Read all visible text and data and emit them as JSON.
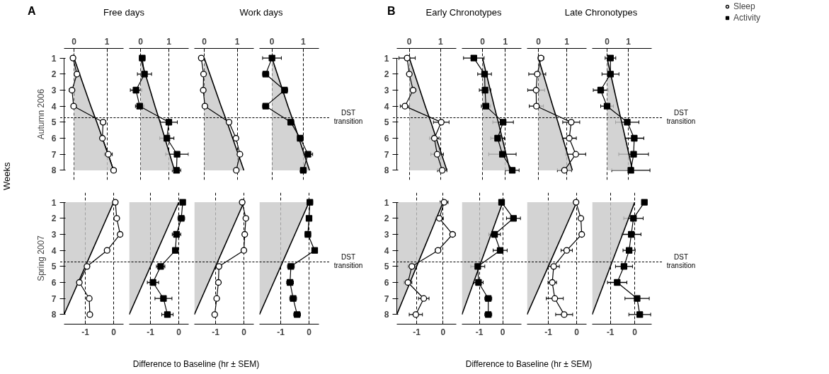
{
  "chart_data": [
    {
      "type": "line",
      "orientation": "horizontal",
      "title": "Free days",
      "ylabel": "Autumn 2006",
      "annotations": [
        "A",
        "Weeks"
      ],
      "categories": [
        "1",
        "2",
        "3",
        "4",
        "5",
        "6",
        "7",
        "8"
      ],
      "xlim": [
        -0.3,
        1.5
      ],
      "xticks": [
        0,
        1
      ],
      "grid": "x",
      "series": [
        {
          "color": "#000000",
          "values": [
            0,
            0.17,
            0.34,
            0.51,
            0.69,
            0.86,
            1.03,
            1.2
          ],
          "lower": [
            0,
            0,
            0,
            0,
            0,
            0,
            0,
            0
          ],
          "upper": [
            0,
            0.17,
            0.34,
            0.51,
            0.69,
            0.86,
            1.03,
            1.2
          ]
        },
        {
          "marker": "circle",
          "color": "#000000",
          "values": [
            -0.03,
            0.09,
            -0.06,
            -0.01,
            0.88,
            0.86,
            1.04,
            1.2
          ],
          "errors": [
            0.05,
            0.06,
            0.08,
            0.05,
            0.08,
            0.06,
            0.12,
            0.08
          ]
        }
      ]
    },
    {
      "type": "line",
      "orientation": "horizontal",
      "tick_labels": "x",
      "categories": [
        "1",
        "2",
        "3",
        "4",
        "5",
        "6",
        "7",
        "8"
      ],
      "xlim": [
        -0.4,
        1.7
      ],
      "xticks": [
        0,
        1
      ],
      "grid": "x",
      "series": [
        {
          "color": "#000000",
          "values": [
            0,
            0.17,
            0.34,
            0.51,
            0.69,
            0.86,
            1.03,
            1.2
          ],
          "lower": [
            0,
            0,
            0,
            0,
            0,
            0,
            0,
            0
          ],
          "upper": [
            0,
            0.17,
            0.34,
            0.51,
            0.69,
            0.86,
            1.03,
            1.2
          ]
        },
        {
          "marker": "square",
          "color": "#000000",
          "values": [
            0.06,
            0.14,
            -0.16,
            -0.03,
            1.0,
            0.93,
            1.29,
            1.27
          ],
          "errors": [
            0.1,
            0.25,
            0.2,
            0.15,
            0.3,
            0.25,
            0.4,
            0.15
          ]
        }
      ]
    },
    {
      "type": "line",
      "orientation": "horizontal",
      "title": "Work days",
      "tick_labels": "x",
      "categories": [
        "1",
        "2",
        "3",
        "4",
        "5",
        "6",
        "7",
        "8"
      ],
      "xlim": [
        -0.3,
        1.5
      ],
      "xticks": [
        0,
        1
      ],
      "grid": "x",
      "series": [
        {
          "color": "#000000",
          "values": [
            0,
            0.17,
            0.34,
            0.51,
            0.69,
            0.86,
            1.03,
            1.2
          ],
          "lower": [
            0,
            0,
            0,
            0,
            0,
            0,
            0,
            0
          ],
          "upper": [
            0,
            0.17,
            0.34,
            0.51,
            0.69,
            0.86,
            1.03,
            1.2
          ]
        },
        {
          "marker": "circle",
          "color": "#000000",
          "values": [
            -0.09,
            -0.02,
            -0.03,
            0.02,
            0.75,
            0.96,
            1.08,
            0.97
          ],
          "errors": [
            0.05,
            0.05,
            0.05,
            0.05,
            0.06,
            0.06,
            0.06,
            0.06
          ]
        }
      ]
    },
    {
      "type": "line",
      "orientation": "horizontal",
      "tick_labels": "x",
      "annotations": [
        "DST transition"
      ],
      "categories": [
        "1",
        "2",
        "3",
        "4",
        "5",
        "6",
        "7",
        "8"
      ],
      "xlim": [
        -0.4,
        1.5
      ],
      "xticks": [
        0,
        1
      ],
      "grid": "x",
      "series": [
        {
          "color": "#000000",
          "values": [
            0,
            0.17,
            0.34,
            0.51,
            0.69,
            0.86,
            1.03,
            1.2
          ],
          "lower": [
            0,
            0,
            0,
            0,
            0,
            0,
            0,
            0
          ],
          "upper": [
            0,
            0.17,
            0.34,
            0.51,
            0.69,
            0.86,
            1.03,
            1.2
          ]
        },
        {
          "marker": "square",
          "color": "#000000",
          "values": [
            0.0,
            -0.2,
            0.4,
            -0.2,
            0.6,
            0.9,
            1.15,
            1.0
          ],
          "errors": [
            0.3,
            0.1,
            0.1,
            0.1,
            0.1,
            0.1,
            0.15,
            0.1
          ]
        }
      ]
    },
    {
      "type": "line",
      "orientation": "horizontal",
      "title": "Early Chronotypes",
      "annotations": [
        "B"
      ],
      "categories": [
        "1",
        "2",
        "3",
        "4",
        "5",
        "6",
        "7",
        "8"
      ],
      "xlim": [
        -0.4,
        1.5
      ],
      "xticks": [
        0,
        1
      ],
      "grid": "x",
      "series": [
        {
          "color": "#000000",
          "values": [
            0,
            0.17,
            0.34,
            0.51,
            0.69,
            0.86,
            1.03,
            1.2
          ],
          "lower": [
            0,
            0,
            0,
            0,
            0,
            0,
            0,
            0
          ],
          "upper": [
            0,
            0.17,
            0.34,
            0.51,
            0.69,
            0.86,
            1.03,
            1.2
          ]
        },
        {
          "marker": "circle",
          "color": "#000000",
          "values": [
            -0.07,
            0.0,
            0.12,
            -0.14,
            1.02,
            0.8,
            0.89,
            1.05
          ],
          "errors": [
            0.26,
            0.05,
            0.1,
            0.15,
            0.25,
            0.15,
            0.2,
            0.15
          ]
        }
      ]
    },
    {
      "type": "line",
      "orientation": "horizontal",
      "tick_labels": "x",
      "categories": [
        "1",
        "2",
        "3",
        "4",
        "5",
        "6",
        "7",
        "8"
      ],
      "xlim": [
        -0.9,
        1.7
      ],
      "xticks": [
        0,
        1
      ],
      "grid": "x",
      "series": [
        {
          "color": "#000000",
          "values": [
            0,
            0.17,
            0.34,
            0.51,
            0.69,
            0.86,
            1.03,
            1.2
          ],
          "lower": [
            0,
            0,
            0,
            0,
            0,
            0,
            0,
            0
          ],
          "upper": [
            0,
            0.17,
            0.34,
            0.51,
            0.69,
            0.86,
            1.03,
            1.2
          ]
        },
        {
          "marker": "square",
          "color": "#000000",
          "values": [
            -0.38,
            0.09,
            0.11,
            0.15,
            0.9,
            0.66,
            0.87,
            1.3
          ],
          "errors": [
            0.45,
            0.3,
            0.25,
            0.2,
            0.45,
            0.3,
            0.6,
            0.3
          ]
        }
      ]
    },
    {
      "type": "line",
      "orientation": "horizontal",
      "title": "Late Chronotypes",
      "tick_labels": "x",
      "categories": [
        "1",
        "2",
        "3",
        "4",
        "5",
        "6",
        "7",
        "8"
      ],
      "xlim": [
        -0.4,
        1.7
      ],
      "xticks": [
        0,
        1
      ],
      "grid": "x",
      "series": [
        {
          "color": "#000000",
          "values": [
            0,
            0.17,
            0.34,
            0.51,
            0.69,
            0.86,
            1.03,
            1.2
          ],
          "lower": [
            0,
            0,
            0,
            0,
            0,
            0,
            0,
            0
          ],
          "upper": [
            0,
            0.17,
            0.34,
            0.51,
            0.69,
            0.86,
            1.03,
            1.2
          ]
        },
        {
          "name": "Sleep",
          "marker": "circle",
          "color": "#000000",
          "values": [
            0.09,
            -0.04,
            -0.08,
            -0.07,
            1.16,
            1.09,
            1.32,
            0.92
          ],
          "errors": [
            0.1,
            0.3,
            0.3,
            0.25,
            0.3,
            0.25,
            0.35,
            0.25
          ]
        }
      ]
    },
    {
      "type": "line",
      "orientation": "horizontal",
      "tick_labels": "x",
      "legend": "top right",
      "annotations": [
        "DST transition"
      ],
      "categories": [
        "1",
        "2",
        "3",
        "4",
        "5",
        "6",
        "7",
        "8"
      ],
      "xlim": [
        -0.7,
        2.1
      ],
      "xticks": [
        0,
        1
      ],
      "grid": "x",
      "series": [
        {
          "color": "#000000",
          "values": [
            0,
            0.17,
            0.34,
            0.51,
            0.69,
            0.86,
            1.03,
            1.2
          ],
          "lower": [
            0,
            0,
            0,
            0,
            0,
            0,
            0,
            0
          ],
          "upper": [
            0,
            0.17,
            0.34,
            0.51,
            0.69,
            0.86,
            1.03,
            1.2
          ]
        },
        {
          "name": "Activity",
          "marker": "square",
          "color": "#000000",
          "values": [
            0.16,
            0.16,
            -0.3,
            0.0,
            0.95,
            1.28,
            1.25,
            1.12
          ],
          "errors": [
            0.25,
            0.4,
            0.35,
            0.3,
            0.55,
            0.45,
            0.7,
            0.9
          ]
        }
      ]
    },
    {
      "type": "line",
      "orientation": "horizontal",
      "ylabel": "Spring 2007",
      "xlabel": "Difference to Baseline (hr ± SEM)",
      "categories": [
        "1",
        "2",
        "3",
        "4",
        "5",
        "6",
        "7",
        "8"
      ],
      "xlim": [
        -1.75,
        0.35
      ],
      "xticks": [
        -1,
        0
      ],
      "grid": "x",
      "series": [
        {
          "color": "#000000",
          "values": [
            0,
            -0.25,
            -0.5,
            -0.75,
            -1,
            -1.25,
            -1.5,
            -1.75
          ],
          "lower": [
            -1.75,
            -1.75,
            -1.75,
            -1.75,
            -1.75,
            -1.75,
            -1.75,
            -1.75
          ],
          "upper": [
            0,
            -0.25,
            -0.5,
            -0.75,
            -1,
            -1.25,
            -1.5,
            -1.75
          ]
        },
        {
          "marker": "circle",
          "color": "#000000",
          "values": [
            0.06,
            0.11,
            0.23,
            -0.23,
            -0.94,
            -1.21,
            -0.86,
            -0.84
          ],
          "errors": [
            0.05,
            0.05,
            0.05,
            0.05,
            0.08,
            0.06,
            0.08,
            0.08
          ]
        }
      ]
    },
    {
      "type": "line",
      "orientation": "horizontal",
      "tick_labels": "x",
      "categories": [
        "1",
        "2",
        "3",
        "4",
        "5",
        "6",
        "7",
        "8"
      ],
      "xlim": [
        -1.75,
        0.35
      ],
      "xticks": [
        -1,
        0
      ],
      "grid": "x",
      "series": [
        {
          "color": "#000000",
          "values": [
            0,
            -0.25,
            -0.5,
            -0.75,
            -1,
            -1.25,
            -1.5,
            -1.75
          ],
          "lower": [
            -1.75,
            -1.75,
            -1.75,
            -1.75,
            -1.75,
            -1.75,
            -1.75,
            -1.75
          ],
          "upper": [
            0,
            -0.25,
            -0.5,
            -0.75,
            -1,
            -1.25,
            -1.5,
            -1.75
          ]
        },
        {
          "marker": "square",
          "color": "#000000",
          "values": [
            0.14,
            0.09,
            -0.08,
            -0.12,
            -0.64,
            -0.91,
            -0.54,
            -0.4
          ],
          "errors": [
            0.08,
            0.12,
            0.15,
            0.1,
            0.15,
            0.2,
            0.3,
            0.2
          ]
        }
      ]
    },
    {
      "type": "line",
      "orientation": "horizontal",
      "tick_labels": "x",
      "categories": [
        "1",
        "2",
        "3",
        "4",
        "5",
        "6",
        "7",
        "8"
      ],
      "xlim": [
        -1.75,
        0.35
      ],
      "xticks": [
        -1,
        0
      ],
      "grid": "x",
      "series": [
        {
          "color": "#000000",
          "values": [
            0,
            -0.25,
            -0.5,
            -0.75,
            -1,
            -1.25,
            -1.5,
            -1.75
          ],
          "lower": [
            -1.75,
            -1.75,
            -1.75,
            -1.75,
            -1.75,
            -1.75,
            -1.75,
            -1.75
          ],
          "upper": [
            0,
            -0.25,
            -0.5,
            -0.75,
            -1,
            -1.25,
            -1.5,
            -1.75
          ]
        },
        {
          "marker": "circle",
          "color": "#000000",
          "values": [
            -0.06,
            0.07,
            0.03,
            0.0,
            -0.88,
            -0.9,
            -0.96,
            -1.03
          ],
          "errors": [
            0.05,
            0.05,
            0.05,
            0.05,
            0.05,
            0.05,
            0.05,
            0.05
          ]
        }
      ]
    },
    {
      "type": "line",
      "orientation": "horizontal",
      "tick_labels": "x",
      "annotations": [
        "DST transition"
      ],
      "categories": [
        "1",
        "2",
        "3",
        "4",
        "5",
        "6",
        "7",
        "8"
      ],
      "xlim": [
        -1.75,
        0.35
      ],
      "xticks": [
        -1,
        0
      ],
      "grid": "x",
      "series": [
        {
          "color": "#000000",
          "values": [
            0,
            -0.25,
            -0.5,
            -0.75,
            -1,
            -1.25,
            -1.5,
            -1.75
          ],
          "lower": [
            -1.75,
            -1.75,
            -1.75,
            -1.75,
            -1.75,
            -1.75,
            -1.75,
            -1.75
          ],
          "upper": [
            0,
            -0.25,
            -0.5,
            -0.75,
            -1,
            -1.25,
            -1.5,
            -1.75
          ]
        },
        {
          "marker": "square",
          "color": "#000000",
          "values": [
            0.03,
            0.0,
            -0.04,
            0.2,
            -0.64,
            -0.67,
            -0.56,
            -0.42
          ],
          "errors": [
            0.1,
            0.1,
            0.1,
            0.1,
            0.12,
            0.12,
            0.12,
            0.12
          ]
        }
      ]
    },
    {
      "type": "line",
      "orientation": "horizontal",
      "xlabel": "Difference to Baseline (hr ± SEM)",
      "categories": [
        "1",
        "2",
        "3",
        "4",
        "5",
        "6",
        "7",
        "8"
      ],
      "xlim": [
        -1.75,
        0.5
      ],
      "xticks": [
        -1,
        0
      ],
      "grid": "x",
      "series": [
        {
          "color": "#000000",
          "values": [
            0,
            -0.25,
            -0.5,
            -0.75,
            -1,
            -1.25,
            -1.5,
            -1.75
          ],
          "lower": [
            -1.75,
            -1.75,
            -1.75,
            -1.75,
            -1.75,
            -1.75,
            -1.75,
            -1.75
          ],
          "upper": [
            0,
            -0.25,
            -0.5,
            -0.75,
            -1,
            -1.25,
            -1.5,
            -1.75
          ]
        },
        {
          "marker": "circle",
          "color": "#000000",
          "values": [
            0.04,
            -0.14,
            0.36,
            -0.19,
            -1.18,
            -1.33,
            -0.73,
            -1.03
          ],
          "errors": [
            0.15,
            0.15,
            0.1,
            0.1,
            0.15,
            0.15,
            0.2,
            0.25
          ]
        }
      ]
    },
    {
      "type": "line",
      "orientation": "horizontal",
      "tick_labels": "x",
      "categories": [
        "1",
        "2",
        "3",
        "4",
        "5",
        "6",
        "7",
        "8"
      ],
      "xlim": [
        -1.75,
        0.8
      ],
      "xticks": [
        -1,
        0
      ],
      "grid": "x",
      "series": [
        {
          "color": "#000000",
          "values": [
            0,
            -0.25,
            -0.5,
            -0.75,
            -1,
            -1.25,
            -1.5,
            -1.75
          ],
          "lower": [
            -1.75,
            -1.75,
            -1.75,
            -1.75,
            -1.75,
            -1.75,
            -1.75,
            -1.75
          ],
          "upper": [
            0,
            -0.25,
            -0.5,
            -0.75,
            -1,
            -1.25,
            -1.5,
            -1.75
          ]
        },
        {
          "marker": "square",
          "color": "#000000",
          "values": [
            -0.05,
            0.46,
            -0.35,
            -0.11,
            -1.07,
            -1.04,
            -0.62,
            -0.62
          ],
          "errors": [
            0.1,
            0.3,
            0.25,
            0.3,
            0.3,
            0.2,
            0.15,
            0.15
          ]
        }
      ]
    },
    {
      "type": "line",
      "orientation": "horizontal",
      "tick_labels": "x",
      "categories": [
        "1",
        "2",
        "3",
        "4",
        "5",
        "6",
        "7",
        "8"
      ],
      "xlim": [
        -1.75,
        0.35
      ],
      "xticks": [
        -1,
        0
      ],
      "grid": "x",
      "series": [
        {
          "color": "#000000",
          "values": [
            0,
            -0.25,
            -0.5,
            -0.75,
            -1,
            -1.25,
            -1.5,
            -1.75
          ],
          "lower": [
            -1.75,
            -1.75,
            -1.75,
            -1.75,
            -1.75,
            -1.75,
            -1.75,
            -1.75
          ],
          "upper": [
            0,
            -0.25,
            -0.5,
            -0.75,
            -1,
            -1.25,
            -1.5,
            -1.75
          ]
        },
        {
          "marker": "circle",
          "color": "#000000",
          "values": [
            -0.02,
            0.15,
            0.18,
            -0.35,
            -0.81,
            -0.86,
            -0.77,
            -0.44
          ],
          "errors": [
            0.05,
            0.05,
            0.05,
            0.2,
            0.2,
            0.15,
            0.3,
            0.3
          ]
        }
      ]
    },
    {
      "type": "line",
      "orientation": "horizontal",
      "tick_labels": "x",
      "annotations": [
        "DST transition"
      ],
      "categories": [
        "1",
        "2",
        "3",
        "4",
        "5",
        "6",
        "7",
        "8"
      ],
      "xlim": [
        -1.75,
        0.7
      ],
      "xticks": [
        -1,
        0
      ],
      "grid": "x",
      "series": [
        {
          "color": "#000000",
          "values": [
            0,
            -0.25,
            -0.5,
            -0.75,
            -1,
            -1.25,
            -1.5,
            -1.75
          ],
          "lower": [
            -1.75,
            -1.75,
            -1.75,
            -1.75,
            -1.75,
            -1.75,
            -1.75,
            -1.75
          ],
          "upper": [
            0,
            -0.25,
            -0.5,
            -0.75,
            -1,
            -1.25,
            -1.5,
            -1.75
          ]
        },
        {
          "marker": "square",
          "color": "#000000",
          "values": [
            0.4,
            -0.05,
            -0.14,
            -0.23,
            -0.44,
            -0.72,
            0.1,
            0.21
          ],
          "errors": [
            0.1,
            0.4,
            0.4,
            0.25,
            0.35,
            0.4,
            0.5,
            0.45
          ]
        }
      ]
    }
  ]
}
